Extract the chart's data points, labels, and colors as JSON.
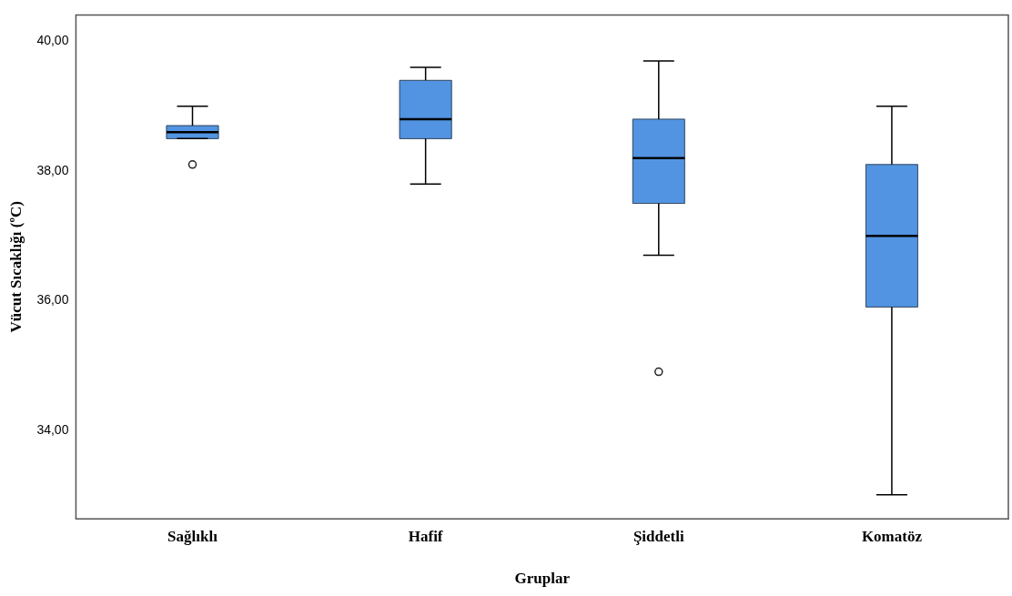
{
  "chart_data": {
    "type": "box",
    "xlabel": "Gruplar",
    "ylabel": "Vücut Sıcaklığı (ºC)",
    "categories": [
      "Sağlıklı",
      "Hafif",
      "Şiddetli",
      "Komatöz"
    ],
    "color": "#5294e2",
    "boxes": [
      {
        "low": 38.5,
        "q1": 38.5,
        "median": 38.6,
        "q3": 38.7,
        "high": 39.0,
        "outliers": [
          38.1
        ]
      },
      {
        "low": 37.8,
        "q1": 38.5,
        "median": 38.8,
        "q3": 39.4,
        "high": 39.6
      },
      {
        "low": 36.7,
        "q1": 37.5,
        "median": 38.2,
        "q3": 38.8,
        "high": 39.7,
        "outliers": [
          34.9
        ]
      },
      {
        "low": 33.0,
        "q1": 35.9,
        "median": 37.0,
        "q3": 38.1,
        "high": 39.0
      }
    ],
    "ylim": [
      32.63,
      40.41
    ],
    "yticks": [
      {
        "value": 34,
        "label": "34,00"
      },
      {
        "value": 36,
        "label": "36,00"
      },
      {
        "value": 38,
        "label": "38,00"
      },
      {
        "value": 40,
        "label": "40,00"
      }
    ],
    "grid": false
  }
}
